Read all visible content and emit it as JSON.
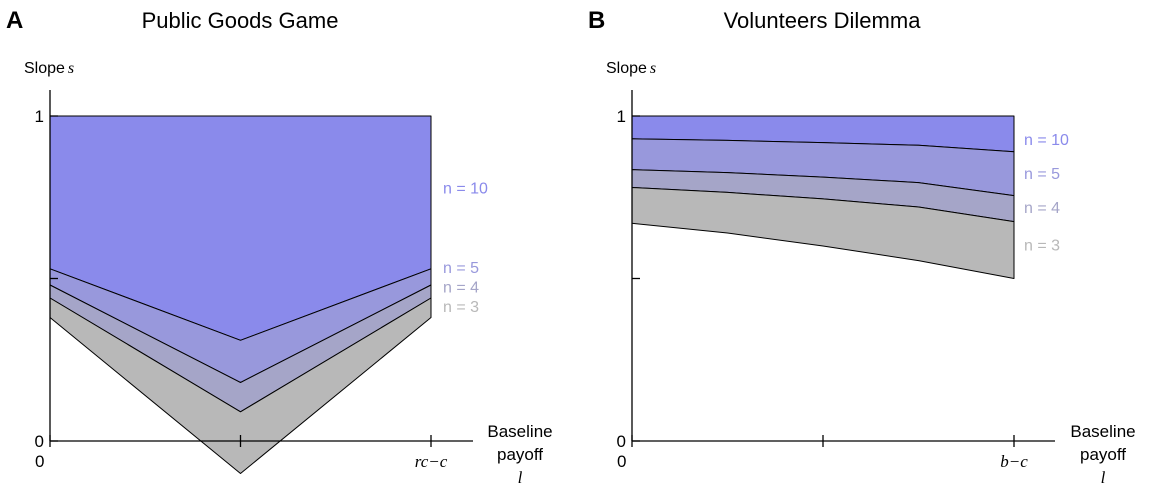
{
  "chart_data": [
    {
      "type": "area",
      "panel_letter": "A",
      "title": "Public Goods Game",
      "ylabel": "Slope",
      "ylabel_symbol": "s",
      "xlabel_lines": [
        "Baseline",
        "payoff"
      ],
      "xlabel_symbol": "l",
      "x_ticks": [
        {
          "value": 0,
          "label": "0",
          "style": "plain"
        },
        {
          "value": 0.5,
          "label": "",
          "style": "plain"
        },
        {
          "value": 1,
          "label": "rc−c",
          "style": "italic"
        }
      ],
      "y_ticks": [
        {
          "value": 0,
          "label": "0"
        },
        {
          "value": 0.5,
          "label": ""
        },
        {
          "value": 1,
          "label": "1"
        }
      ],
      "ylim": [
        0,
        1
      ],
      "series": [
        {
          "name": "n = 10",
          "color": "#8a8aeb",
          "label_color": "#8a8aeb",
          "label_y": 0.78,
          "x": [
            0,
            0.5,
            1
          ],
          "lower": [
            0.53,
            0.31,
            0.53
          ],
          "upper": [
            1,
            1,
            1
          ]
        },
        {
          "name": "n = 5",
          "color": "#9898dc",
          "label_color": "#9898dc",
          "label_y": 0.535,
          "x": [
            0,
            0.5,
            1
          ],
          "lower": [
            0.48,
            0.18,
            0.48
          ],
          "upper": [
            0.53,
            0.31,
            0.53
          ]
        },
        {
          "name": "n = 4",
          "color": "#a5a5c8",
          "label_color": "#a5a5c8",
          "label_y": 0.475,
          "x": [
            0,
            0.5,
            1
          ],
          "lower": [
            0.44,
            0.09,
            0.44
          ],
          "upper": [
            0.48,
            0.18,
            0.48
          ]
        },
        {
          "name": "n = 3",
          "color": "#b8b8b8",
          "label_color": "#b8b8b8",
          "label_y": 0.415,
          "x": [
            0,
            0.5,
            1
          ],
          "lower": [
            0.38,
            -0.1,
            0.38
          ],
          "upper": [
            0.44,
            0.09,
            0.44
          ]
        }
      ]
    },
    {
      "type": "area",
      "panel_letter": "B",
      "title": "Volunteers Dilemma",
      "ylabel": "Slope",
      "ylabel_symbol": "s",
      "xlabel_lines": [
        "Baseline",
        "payoff"
      ],
      "xlabel_symbol": "l",
      "x_ticks": [
        {
          "value": 0,
          "label": "0",
          "style": "plain"
        },
        {
          "value": 0.5,
          "label": "",
          "style": "plain"
        },
        {
          "value": 1,
          "label": "b−c",
          "style": "italic"
        }
      ],
      "y_ticks": [
        {
          "value": 0,
          "label": "0"
        },
        {
          "value": 0.5,
          "label": ""
        },
        {
          "value": 1,
          "label": "1"
        }
      ],
      "ylim": [
        0,
        1
      ],
      "series": [
        {
          "name": "n = 10",
          "color": "#8a8aeb",
          "label_color": "#8a8aeb",
          "label_y": 0.93,
          "x": [
            0,
            0.25,
            0.5,
            0.75,
            1
          ],
          "lower": [
            0.93,
            0.925,
            0.918,
            0.91,
            0.89
          ],
          "upper": [
            1,
            1,
            1,
            1,
            1
          ]
        },
        {
          "name": "n = 5",
          "color": "#9898dc",
          "label_color": "#9898dc",
          "label_y": 0.825,
          "x": [
            0,
            0.25,
            0.5,
            0.75,
            1
          ],
          "lower": [
            0.835,
            0.826,
            0.812,
            0.795,
            0.755
          ],
          "upper": [
            0.93,
            0.925,
            0.918,
            0.91,
            0.89
          ]
        },
        {
          "name": "n = 4",
          "color": "#a5a5c8",
          "label_color": "#a5a5c8",
          "label_y": 0.72,
          "x": [
            0,
            0.25,
            0.5,
            0.75,
            1
          ],
          "lower": [
            0.78,
            0.765,
            0.745,
            0.72,
            0.675
          ],
          "upper": [
            0.835,
            0.826,
            0.812,
            0.795,
            0.755
          ]
        },
        {
          "name": "n = 3",
          "color": "#b8b8b8",
          "label_color": "#b8b8b8",
          "label_y": 0.605,
          "x": [
            0,
            0.25,
            0.5,
            0.75,
            1
          ],
          "lower": [
            0.67,
            0.64,
            0.6,
            0.555,
            0.5
          ],
          "upper": [
            0.78,
            0.765,
            0.745,
            0.72,
            0.675
          ]
        }
      ]
    }
  ]
}
